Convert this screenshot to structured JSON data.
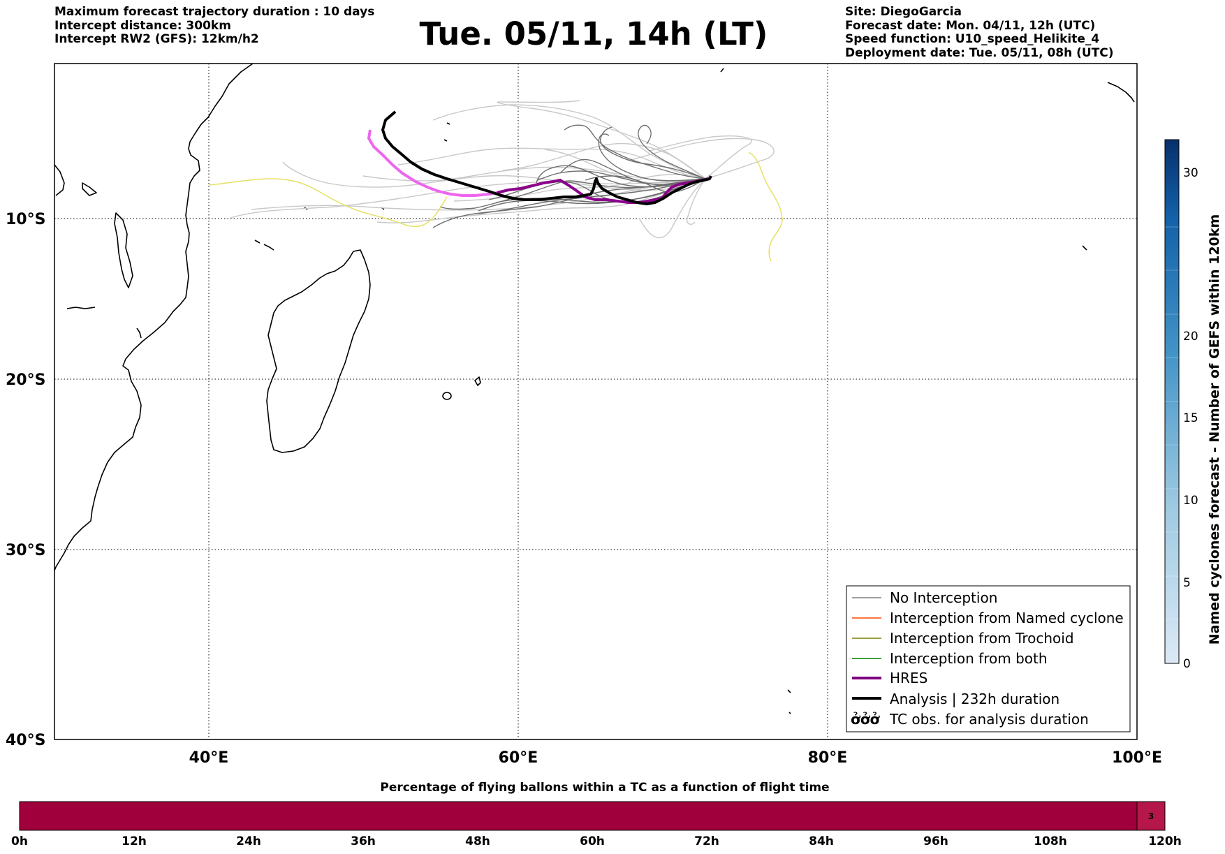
{
  "header": {
    "left": [
      "Maximum forecast trajectory duration : 10 days",
      "Intercept distance: 300km",
      "Intercept RW2 (GFS):  12km/h2"
    ],
    "title": "Tue. 05/11, 14h (LT)",
    "right": [
      "Site: DiegoGarcia",
      "Forecast date: Mon. 04/11, 12h (UTC)",
      "Speed function: U10_speed_Helikite_4",
      "Deployment date: Tue. 05/11, 08h (UTC)"
    ]
  },
  "map": {
    "lat_ticks": [
      "10°S",
      "20°S",
      "30°S",
      "40°S"
    ],
    "lon_ticks": [
      "40°E",
      "60°E",
      "80°E",
      "100°E"
    ],
    "lon_range": [
      30,
      100
    ],
    "lat_range": [
      -40.3,
      -0.8
    ],
    "grid": "dotted",
    "legend": {
      "position": "lower-right",
      "items": [
        {
          "label": "No Interception",
          "color": "#808080"
        },
        {
          "label": "Interception from Named cyclone",
          "color": "#ff4500"
        },
        {
          "label": "Interception from Trochoid",
          "color": "#808000"
        },
        {
          "label": "Interception from both",
          "color": "#008000"
        },
        {
          "label": "HRES",
          "color": "#800080"
        },
        {
          "label": "Analysis | 232h duration",
          "color": "#000000"
        },
        {
          "label": "TC obs. for analysis duration",
          "symbol": "ởởở",
          "color": "#000000"
        }
      ]
    }
  },
  "colorbar_right": {
    "label": "Named cyclones forecast - Number of GEFS within 120km",
    "ticks": [
      "0",
      "5",
      "10",
      "15",
      "20",
      "30"
    ],
    "color_low": "#dbe9f6",
    "color_high": "#08306b"
  },
  "colorbar_bottom": {
    "title": "Percentage of flying ballons within a TC as a function of flight time",
    "ticks": [
      "0h",
      "12h",
      "24h",
      "36h",
      "48h",
      "60h",
      "72h",
      "84h",
      "96h",
      "108h",
      "120h"
    ],
    "fill_color": "#a0003c",
    "end_label": "3",
    "end_color": "#b5174a"
  }
}
